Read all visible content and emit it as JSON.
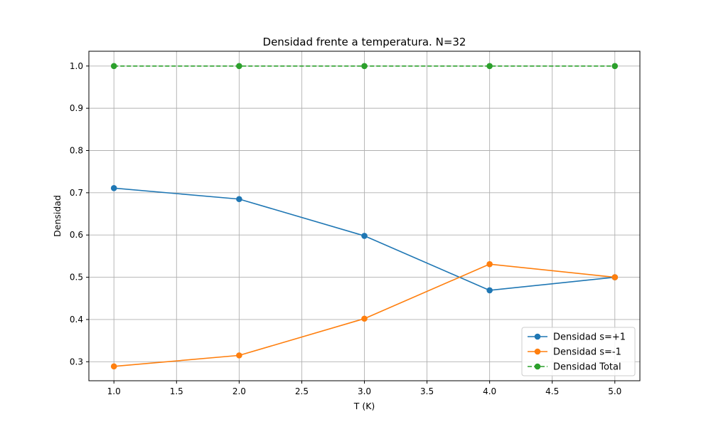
{
  "chart_data": {
    "type": "line",
    "title": "Densidad frente a temperatura. N=32",
    "xlabel": "T (K)",
    "ylabel": "Densidad",
    "x": [
      1.0,
      2.0,
      3.0,
      4.0,
      5.0
    ],
    "xlim": [
      0.8,
      5.2
    ],
    "ylim": [
      0.255,
      1.035
    ],
    "xticks": [
      1.0,
      1.5,
      2.0,
      2.5,
      3.0,
      3.5,
      4.0,
      4.5,
      5.0
    ],
    "xtick_labels": [
      "1.0",
      "1.5",
      "2.0",
      "2.5",
      "3.0",
      "3.5",
      "4.0",
      "4.5",
      "5.0"
    ],
    "yticks": [
      0.3,
      0.4,
      0.5,
      0.6,
      0.7,
      0.8,
      0.9,
      1.0
    ],
    "ytick_labels": [
      "0.3",
      "0.4",
      "0.5",
      "0.6",
      "0.7",
      "0.8",
      "0.9",
      "1.0"
    ],
    "grid": true,
    "legend_position": "lower-right",
    "series": [
      {
        "name": "Densidad s=+1",
        "values": [
          0.711,
          0.685,
          0.598,
          0.469,
          0.5
        ],
        "color": "#1f77b4",
        "linestyle": "solid",
        "marker": "circle"
      },
      {
        "name": "Densidad s=-1",
        "values": [
          0.289,
          0.315,
          0.402,
          0.531,
          0.5
        ],
        "color": "#ff7f0e",
        "linestyle": "solid",
        "marker": "circle"
      },
      {
        "name": "Densidad Total",
        "values": [
          1.0,
          1.0,
          1.0,
          1.0,
          1.0
        ],
        "color": "#2ca02c",
        "linestyle": "dashed",
        "marker": "circle"
      }
    ]
  }
}
